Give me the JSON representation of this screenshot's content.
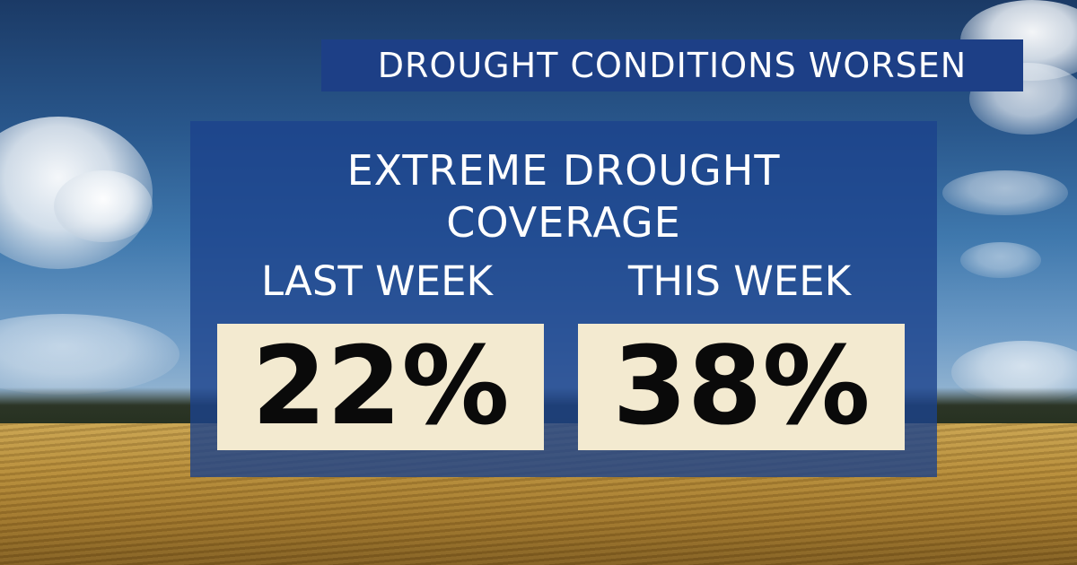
{
  "banner": {
    "title": "DROUGHT CONDITIONS WORSEN"
  },
  "panel": {
    "title_line1": "EXTREME DROUGHT",
    "title_line2": "COVERAGE",
    "last_week": {
      "label": "LAST WEEK",
      "value": "22%"
    },
    "this_week": {
      "label": "THIS WEEK",
      "value": "38%"
    }
  },
  "colors": {
    "banner_bg": "#1d3f86",
    "panel_bg": "#1c428c",
    "value_box_bg": "#f3ead0",
    "text_light": "#ffffff",
    "text_dark": "#0a0a0a"
  }
}
